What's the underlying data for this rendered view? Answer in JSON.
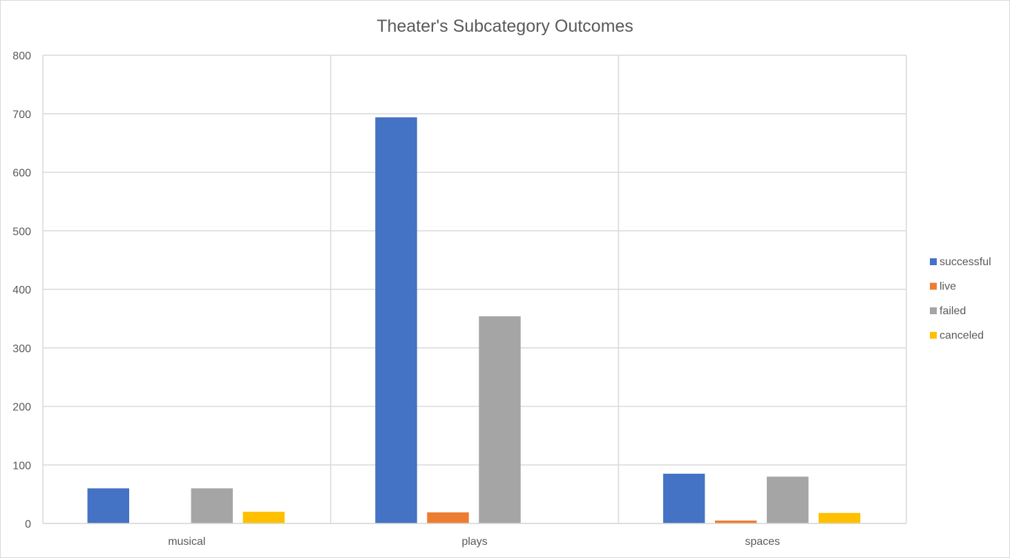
{
  "chart_data": {
    "type": "bar",
    "title": "Theater's Subcategory Outcomes",
    "xlabel": "",
    "ylabel": "",
    "categories": [
      "musical",
      "plays",
      "spaces"
    ],
    "series": [
      {
        "name": "successful",
        "color": "#4472C4",
        "values": [
          60,
          694,
          85
        ]
      },
      {
        "name": "live",
        "color": "#ED7D31",
        "values": [
          0,
          19,
          5
        ]
      },
      {
        "name": "failed",
        "color": "#A5A5A5",
        "values": [
          60,
          354,
          80
        ]
      },
      {
        "name": "canceled",
        "color": "#FFC000",
        "values": [
          20,
          0,
          18
        ]
      }
    ],
    "ylim": [
      0,
      800
    ],
    "yticks": [
      0,
      100,
      200,
      300,
      400,
      500,
      600,
      700,
      800
    ],
    "grid": true,
    "legend_position": "right"
  }
}
